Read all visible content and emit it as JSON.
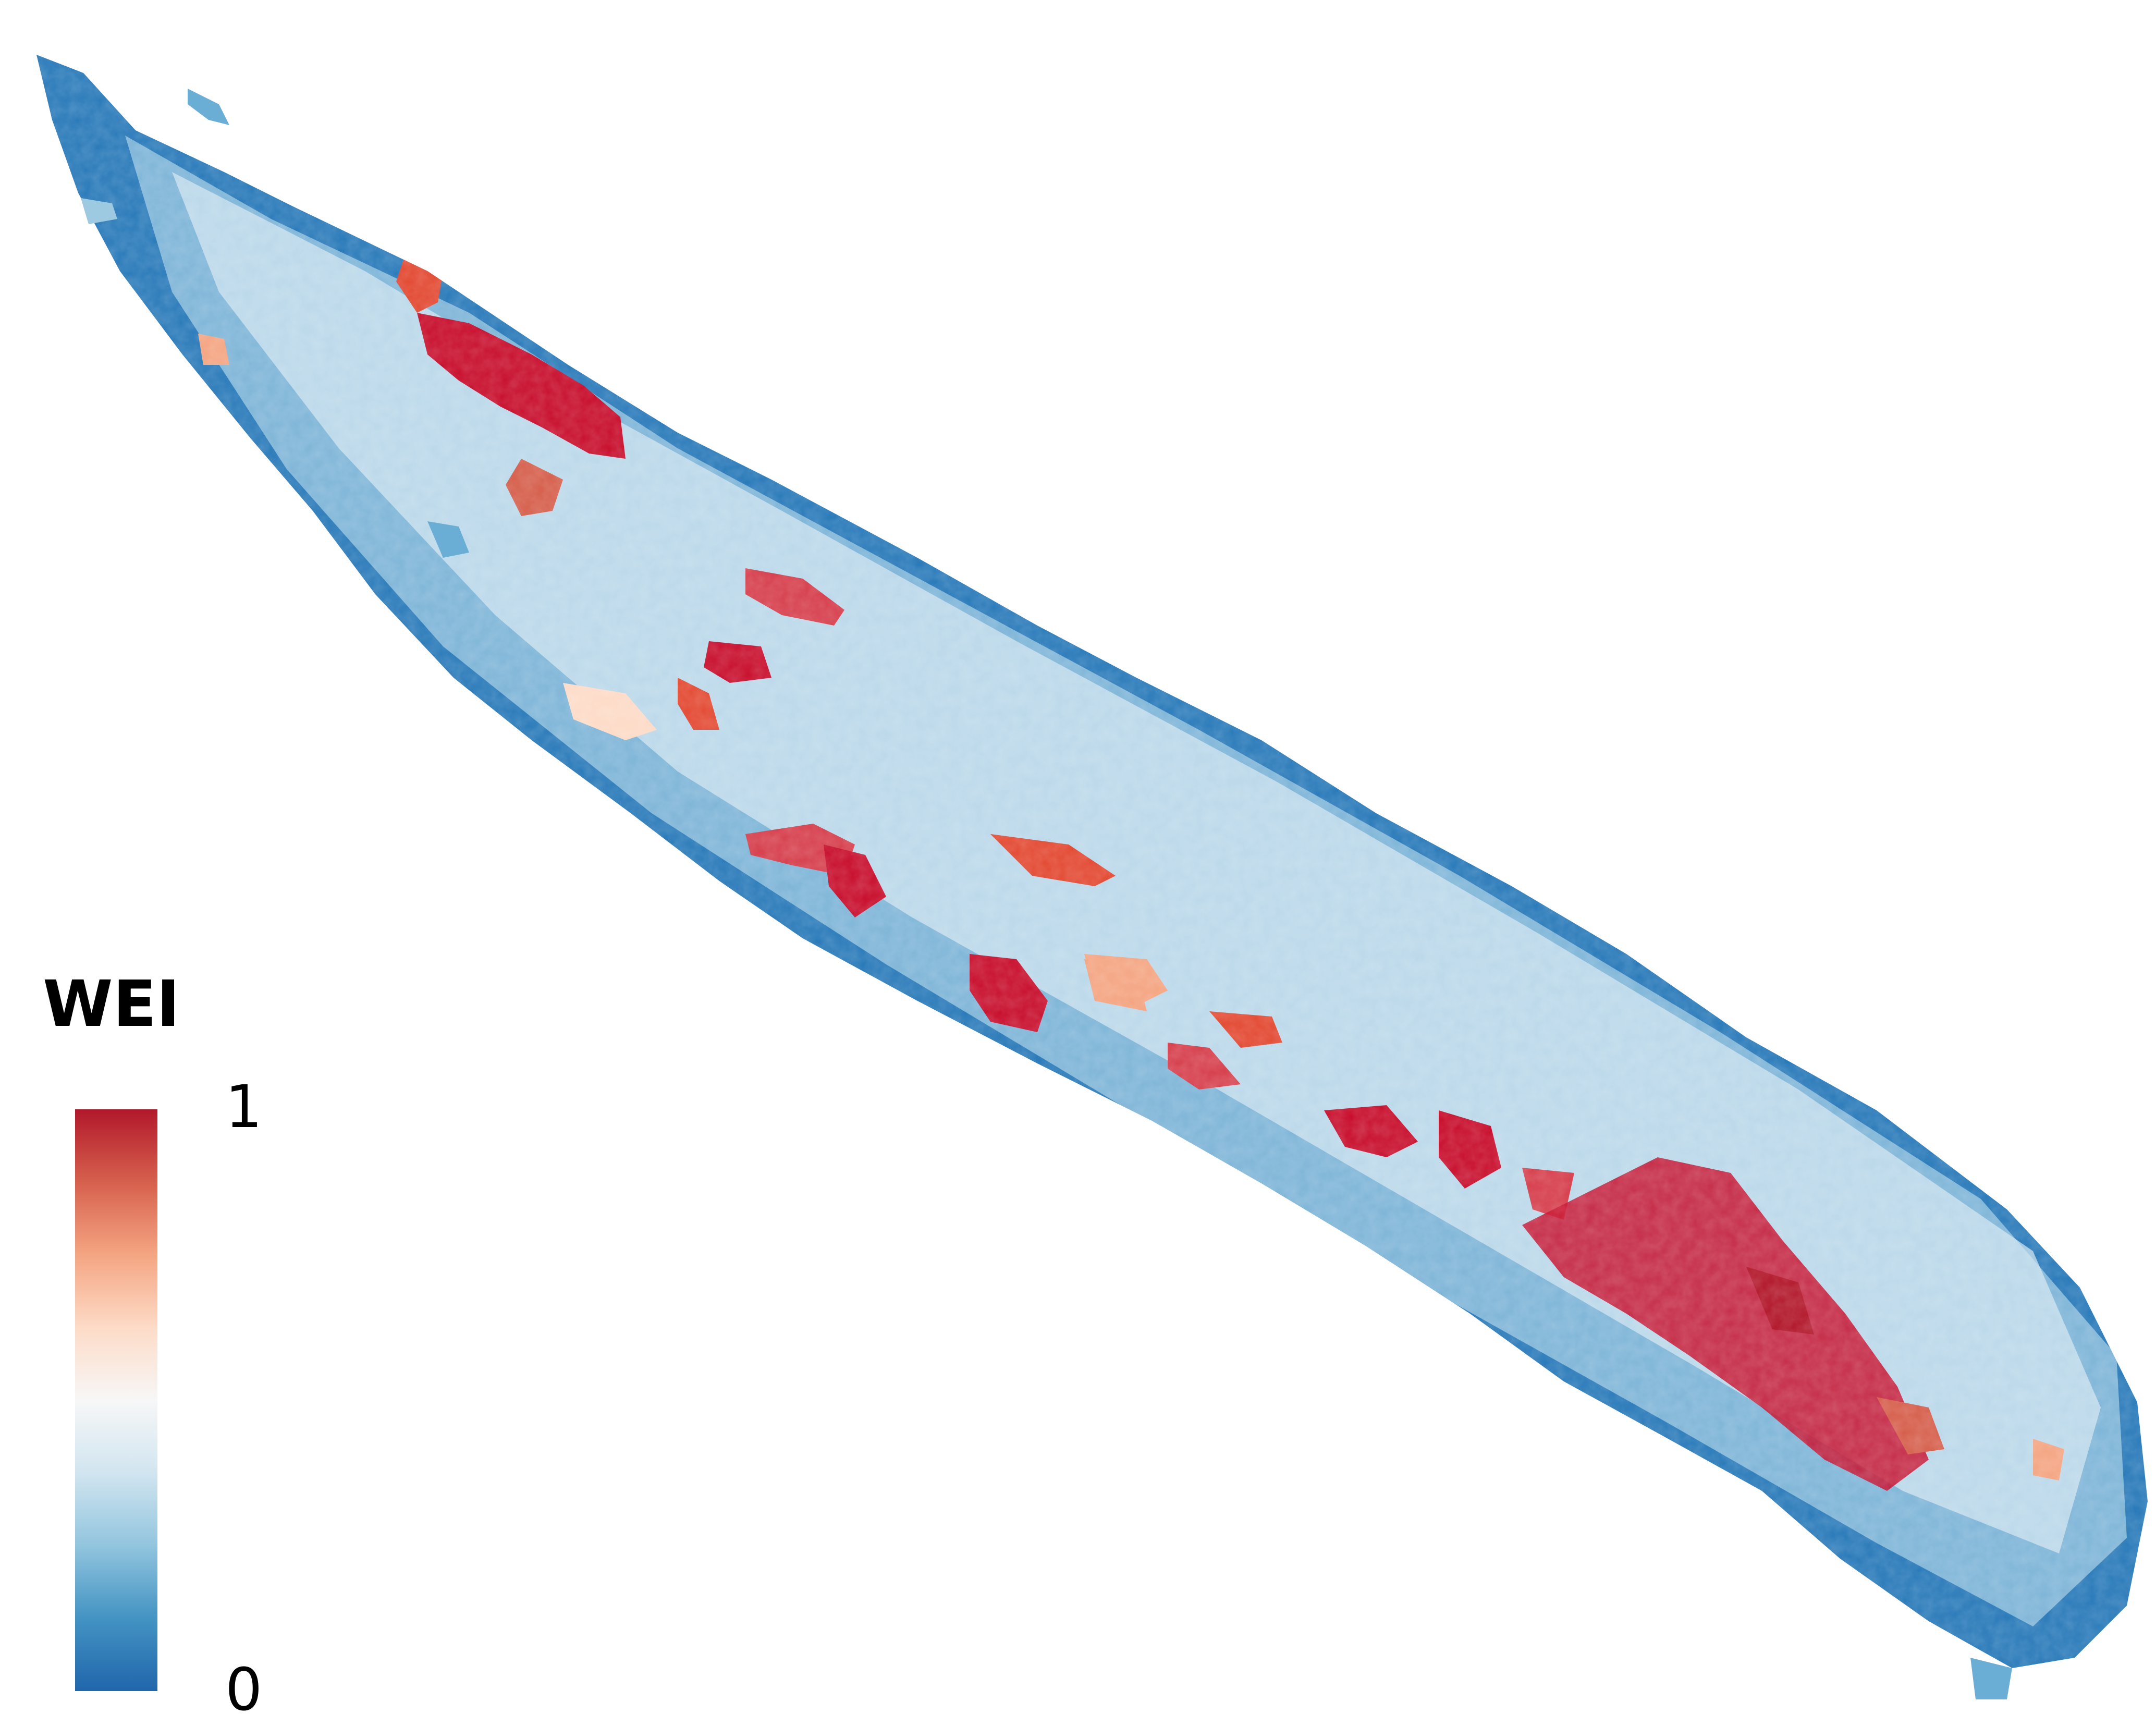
{
  "legend": {
    "title": "WEI",
    "max_label": "1",
    "min_label": "0",
    "colormap": [
      "#2166ac",
      "#4393c3",
      "#92c5de",
      "#d1e5f0",
      "#f7f7f7",
      "#fddbc7",
      "#f4a582",
      "#d6604d",
      "#b2182b"
    ]
  },
  "map": {
    "land_low_color": "#2a7fc0",
    "land_mid_color": "#d6e8f2",
    "land_high_color": "#c8102e",
    "background_color": "#ffffff"
  }
}
